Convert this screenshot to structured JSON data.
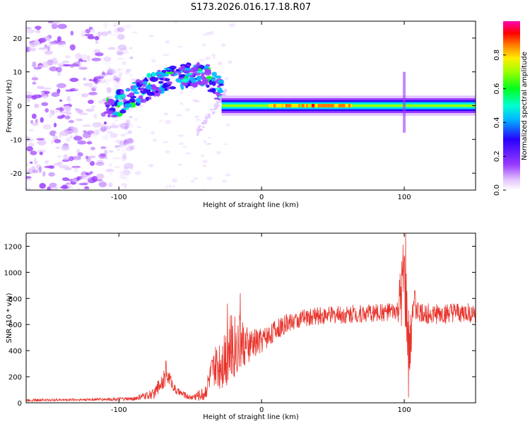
{
  "title": "S173.2026.016.17.18.R07",
  "colors": {
    "snr_line": "#e8322a",
    "axis": "#000000"
  },
  "chart_data": [
    {
      "type": "heatmap",
      "name": "spectrogram",
      "xlabel": "Height of straight line (km)",
      "ylabel": "Frequency (Hz)",
      "xlim": [
        -165,
        150
      ],
      "ylim": [
        -25,
        25
      ],
      "xticks": [
        -100,
        0,
        100
      ],
      "xtick_labels": [
        "-100",
        "0",
        "100"
      ],
      "yticks": [
        -20,
        -10,
        0,
        10,
        20
      ],
      "ytick_labels": [
        "-20",
        "-10",
        "0",
        "10",
        "20"
      ],
      "colorbar": {
        "label": "Normalized spectral amplitude",
        "range": [
          0,
          1
        ],
        "ticks": [
          0.0,
          0.2,
          0.4,
          0.6,
          0.8
        ],
        "tick_labels": [
          "0.0",
          "0.2",
          "0.4",
          "0.6",
          "0.8"
        ]
      },
      "features": [
        {
          "region": "broadband noise",
          "x_range": [
            -165,
            -110
          ],
          "freq_range": [
            -25,
            25
          ],
          "amplitude": 0.1
        },
        {
          "region": "rising arc",
          "x_range": [
            -110,
            -28
          ],
          "freq_range": [
            -3,
            13
          ],
          "amplitude": 0.45
        },
        {
          "region": "steady tone",
          "x_range": [
            -28,
            150
          ],
          "freq": 0,
          "amplitude": 0.85
        },
        {
          "region": "spike",
          "x": 100,
          "freq_range": [
            -8,
            10
          ],
          "amplitude": 0.2
        }
      ]
    },
    {
      "type": "line",
      "name": "snr",
      "xlabel": "Height of straight line (km)",
      "ylabel": "SNR (10 * v/v)",
      "xlim": [
        -165,
        150
      ],
      "ylim": [
        0,
        1300
      ],
      "xticks": [
        -100,
        0,
        100
      ],
      "xtick_labels": [
        "-100",
        "0",
        "100"
      ],
      "yticks": [
        0,
        200,
        400,
        600,
        800,
        1000,
        1200
      ],
      "ytick_labels": [
        "0",
        "200",
        "400",
        "600",
        "800",
        "1000",
        "1200"
      ],
      "series": [
        {
          "name": "SNR",
          "envelope_x": [
            -165,
            -120,
            -90,
            -75,
            -70,
            -65,
            -60,
            -50,
            -40,
            -35,
            -30,
            -25,
            -20,
            -15,
            -10,
            -5,
            0,
            10,
            20,
            30,
            40,
            60,
            80,
            95,
            98,
            100,
            102,
            104,
            106,
            110,
            120,
            150
          ],
          "envelope_y": [
            20,
            25,
            30,
            70,
            170,
            200,
            90,
            40,
            70,
            230,
            300,
            380,
            440,
            470,
            430,
            460,
            480,
            560,
            620,
            650,
            665,
            680,
            690,
            700,
            800,
            950,
            600,
            350,
            800,
            690,
            680,
            690
          ],
          "noise_amplitude": [
            10,
            10,
            15,
            40,
            70,
            60,
            30,
            20,
            60,
            120,
            200,
            260,
            270,
            230,
            150,
            120,
            100,
            80,
            70,
            70,
            70,
            70,
            70,
            70,
            300,
            350,
            300,
            250,
            150,
            80,
            80,
            80
          ],
          "peaks": [
            {
              "x": -67,
              "y": 320
            },
            {
              "x": -24,
              "y": 760
            },
            {
              "x": -15,
              "y": 840
            },
            {
              "x": 101,
              "y": 1300
            },
            {
              "x": 103,
              "y": 40
            }
          ]
        }
      ]
    }
  ]
}
